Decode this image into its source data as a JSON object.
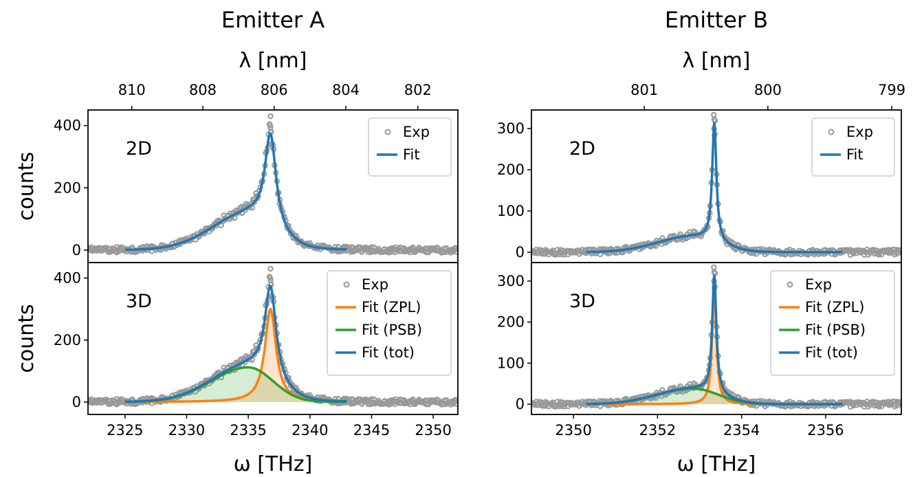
{
  "chart_data": [
    {
      "type": "scatter",
      "column_title": "Emitter A",
      "panel": "2D",
      "xlabel": "ω [THz]",
      "x2label": "λ [nm]",
      "ylabel": "counts",
      "xlim": [
        2322,
        2352
      ],
      "ylim": [
        -40,
        450
      ],
      "xticks": [
        2325,
        2330,
        2335,
        2340,
        2345,
        2350
      ],
      "yticks": [
        0,
        200,
        400
      ],
      "x2ticks": [
        810,
        808,
        806,
        804,
        802
      ],
      "legend": [
        "Exp",
        "Fit"
      ],
      "legend_position": "top-right",
      "fit_range": [
        2325,
        2343
      ],
      "components": {
        "zpl": {
          "center": 2336.8,
          "amplitude": 300,
          "gamma": 0.55
        },
        "psb": {
          "center": 2335.0,
          "amplitude": 112,
          "sigma_left": 3.0,
          "sigma_right": 2.0
        }
      },
      "exp_peak": 430
    },
    {
      "type": "scatter",
      "column_title": "Emitter A",
      "panel": "3D",
      "xlabel": "ω [THz]",
      "ylabel": "counts",
      "xlim": [
        2322,
        2352
      ],
      "ylim": [
        -40,
        450
      ],
      "xticks": [
        2325,
        2330,
        2335,
        2340,
        2345,
        2350
      ],
      "yticks": [
        0,
        200,
        400
      ],
      "legend": [
        "Exp",
        "Fit (ZPL)",
        "Fit (PSB)",
        "Fit (tot)"
      ],
      "legend_position": "top-right",
      "fit_range": [
        2325,
        2343
      ],
      "components": {
        "zpl": {
          "center": 2336.8,
          "amplitude": 300,
          "gamma": 0.55
        },
        "psb": {
          "center": 2335.0,
          "amplitude": 112,
          "sigma_left": 3.0,
          "sigma_right": 2.0
        }
      },
      "exp_peak": 430
    },
    {
      "type": "scatter",
      "column_title": "Emitter B",
      "panel": "2D",
      "xlabel": "ω [THz]",
      "x2label": "λ [nm]",
      "ylabel": "counts",
      "xlim": [
        2349,
        2357.8
      ],
      "ylim": [
        -25,
        345
      ],
      "xticks": [
        2350,
        2352,
        2354,
        2356
      ],
      "yticks": [
        0,
        100,
        200,
        300
      ],
      "x2ticks": [
        801,
        800,
        799
      ],
      "legend": [
        "Exp",
        "Fit"
      ],
      "legend_position": "top-right",
      "fit_range": [
        2350.3,
        2356.4
      ],
      "components": {
        "zpl": {
          "center": 2353.35,
          "amplitude": 288,
          "gamma": 0.06
        },
        "psb": {
          "center": 2352.85,
          "amplitude": 38,
          "sigma_left": 0.85,
          "sigma_right": 0.6
        }
      },
      "exp_peak": 322
    },
    {
      "type": "scatter",
      "column_title": "Emitter B",
      "panel": "3D",
      "xlabel": "ω [THz]",
      "ylabel": "counts",
      "xlim": [
        2349,
        2357.8
      ],
      "ylim": [
        -25,
        345
      ],
      "xticks": [
        2350,
        2352,
        2354,
        2356
      ],
      "yticks": [
        0,
        100,
        200,
        300
      ],
      "legend": [
        "Exp",
        "Fit (ZPL)",
        "Fit (PSB)",
        "Fit (tot)"
      ],
      "legend_position": "top-right",
      "fit_range": [
        2350.3,
        2356.4
      ],
      "components": {
        "zpl": {
          "center": 2353.35,
          "amplitude": 288,
          "gamma": 0.06
        },
        "psb": {
          "center": 2352.85,
          "amplitude": 38,
          "sigma_left": 0.85,
          "sigma_right": 0.6
        }
      },
      "exp_peak": 322
    }
  ],
  "colors": {
    "exp": "#999999",
    "fit": "#1f77b4",
    "zpl": "#ff7f0e",
    "psb": "#2ca02c",
    "tot": "#1f77b4",
    "zpl_fill": "#ff7f0e",
    "psb_fill": "#2ca02c"
  }
}
